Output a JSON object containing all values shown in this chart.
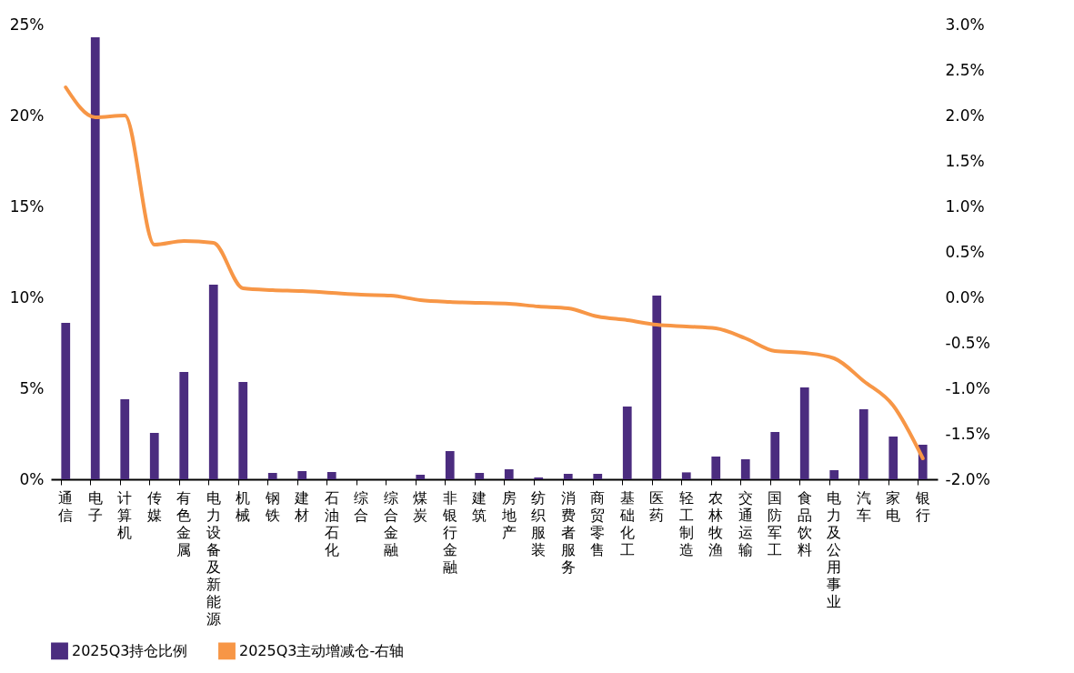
{
  "chart_data": {
    "type": "bar",
    "categories": [
      "通信",
      "电子",
      "计算机",
      "传媒",
      "有色金属",
      "电力设备及新能源",
      "机械",
      "钢铁",
      "建材",
      "石油石化",
      "综合",
      "综合金融",
      "煤炭",
      "非银行金融",
      "建筑",
      "房地产",
      "纺织服装",
      "消费者服务",
      "商贸零售",
      "基础化工",
      "医药",
      "轻工制造",
      "农林牧渔",
      "交通运输",
      "国防军工",
      "食品饮料",
      "电力及公用事业",
      "汽车",
      "家电",
      "银行"
    ],
    "series": [
      {
        "name": "2025Q3持仓比例",
        "color": "#4b2c7f",
        "values": [
          8.6,
          24.3,
          4.4,
          2.55,
          5.9,
          10.7,
          5.35,
          0.35,
          0.45,
          0.4,
          0,
          0,
          0.25,
          1.55,
          0.35,
          0.55,
          0.1,
          0.3,
          0.3,
          4.0,
          10.1,
          0.38,
          1.25,
          1.1,
          2.6,
          5.05,
          0.5,
          3.85,
          2.35,
          1.9
        ]
      },
      {
        "name": "2025Q3主动增减仓-右轴",
        "type": "line",
        "axis": "y2",
        "color": "#f79646",
        "values": [
          2.31,
          1.98,
          2.0,
          0.58,
          0.62,
          0.6,
          0.1,
          0.08,
          0.07,
          0.05,
          0.03,
          0.02,
          -0.03,
          -0.05,
          -0.06,
          -0.07,
          -0.1,
          -0.12,
          -0.21,
          -0.25,
          -0.3,
          -0.32,
          -0.34,
          -0.45,
          -0.59,
          -0.61,
          -0.67,
          -0.92,
          -1.19,
          -1.77
        ]
      }
    ],
    "ylim": [
      0,
      25
    ],
    "yticks": [
      {
        "value": 0,
        "label": "0%"
      },
      {
        "value": 5,
        "label": "5%"
      },
      {
        "value": 10,
        "label": "10%"
      },
      {
        "value": 15,
        "label": "15%"
      },
      {
        "value": 20,
        "label": "20%"
      },
      {
        "value": 25,
        "label": "25%"
      }
    ],
    "y2lim": [
      -2,
      3
    ],
    "y2ticks": [
      {
        "value": -2,
        "label": "-2.0%"
      },
      {
        "value": -1.5,
        "label": "-1.5%"
      },
      {
        "value": -1,
        "label": "-1.0%"
      },
      {
        "value": -0.5,
        "label": "-0.5%"
      },
      {
        "value": 0,
        "label": "0.0%"
      },
      {
        "value": 0.5,
        "label": "0.5%"
      },
      {
        "value": 1,
        "label": "1.0%"
      },
      {
        "value": 1.5,
        "label": "1.5%"
      },
      {
        "value": 2,
        "label": "2.0%"
      },
      {
        "value": 2.5,
        "label": "2.5%"
      },
      {
        "value": 3,
        "label": "3.0%"
      }
    ],
    "legend": "bottom",
    "grid": false
  }
}
